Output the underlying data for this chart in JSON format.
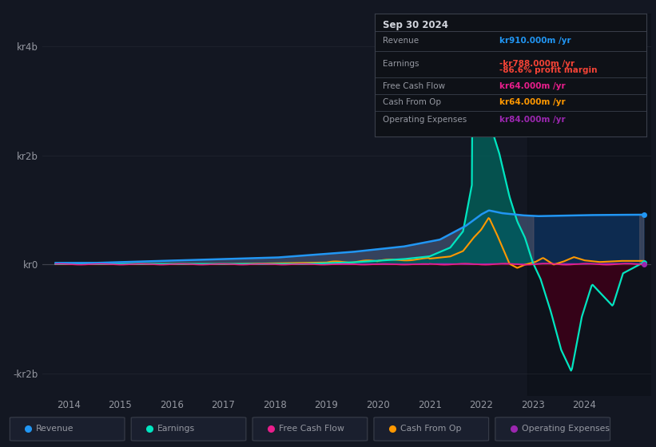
{
  "bg_color": "#131722",
  "grid_color": "#2a2e39",
  "text_color": "#9598a1",
  "title_color": "#d1d4dc",
  "revenue_color": "#2196f3",
  "earnings_color": "#00e5c0",
  "fcf_color": "#e91e8c",
  "cashfromop_color": "#ff9800",
  "opex_color": "#9c27b0",
  "xlim_min": 2013.5,
  "xlim_max": 2025.3,
  "ylim_min": -2400000000.0,
  "ylim_max": 4600000000.0,
  "yticks": [
    -2000000000.0,
    0,
    2000000000.0,
    4000000000.0
  ],
  "ytick_labels": [
    "-kr2b",
    "kr0",
    "kr2b",
    "kr4b"
  ],
  "xticks": [
    2014,
    2015,
    2016,
    2017,
    2018,
    2019,
    2020,
    2021,
    2022,
    2023,
    2024
  ],
  "info_box_title": "Sep 30 2024",
  "info_rows": [
    {
      "label": "Revenue",
      "value": "kr910.000m /yr",
      "value_color": "#2196f3",
      "sub": null,
      "sub_color": null
    },
    {
      "label": "Earnings",
      "value": "-kr788.000m /yr",
      "value_color": "#f44336",
      "sub": "-86.6% profit margin",
      "sub_color": "#f44336"
    },
    {
      "label": "Free Cash Flow",
      "value": "kr64.000m /yr",
      "value_color": "#e91e8c",
      "sub": null,
      "sub_color": null
    },
    {
      "label": "Cash From Op",
      "value": "kr64.000m /yr",
      "value_color": "#ff9800",
      "sub": null,
      "sub_color": null
    },
    {
      "label": "Operating Expenses",
      "value": "kr84.000m /yr",
      "value_color": "#9c27b0",
      "sub": null,
      "sub_color": null
    }
  ],
  "legend_items": [
    {
      "label": "Revenue",
      "color": "#2196f3"
    },
    {
      "label": "Earnings",
      "color": "#00e5c0"
    },
    {
      "label": "Free Cash Flow",
      "color": "#e91e8c"
    },
    {
      "label": "Cash From Op",
      "color": "#ff9800"
    },
    {
      "label": "Operating Expenses",
      "color": "#9c27b0"
    }
  ]
}
